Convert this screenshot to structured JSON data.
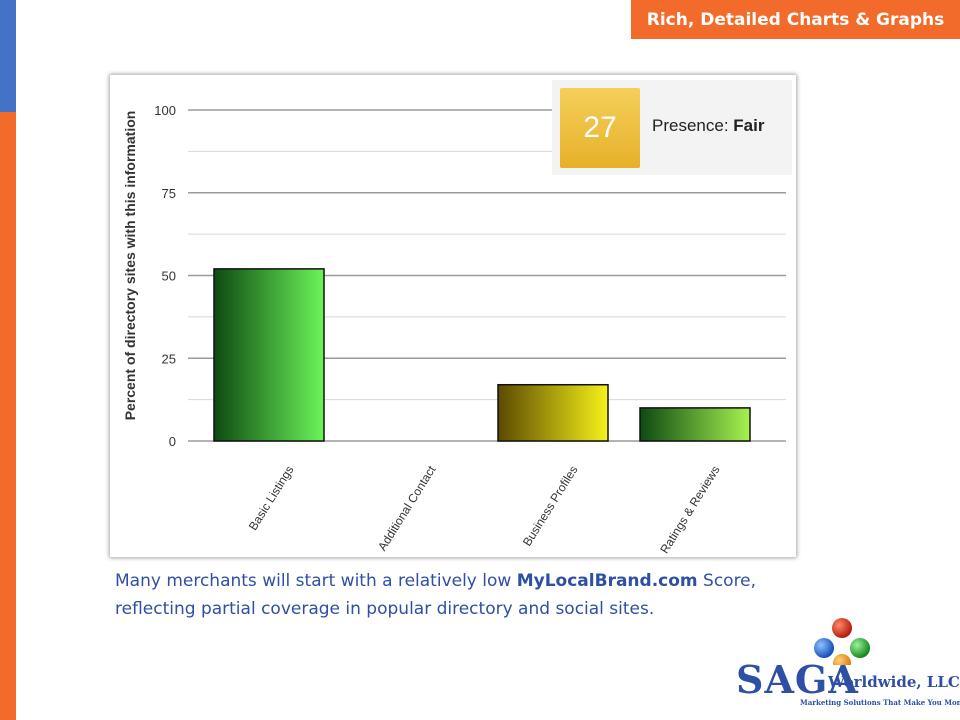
{
  "header": {
    "title": "Rich, Detailed Charts & Graphs"
  },
  "score_widget": {
    "score": "27",
    "label": "Presence:",
    "rating": "Fair"
  },
  "caption": {
    "text_before": "Many merchants will start with a relatively low ",
    "brand": "MyLocalBrand.com",
    "text_after": " Score, reflecting partial coverage in popular directory and social sites."
  },
  "logo": {
    "name": "SAGA",
    "suffix": "Worldwide, LLC",
    "tagline": "Marketing Solutions That Make You Money"
  },
  "colors": {
    "accent": "#f36b2a",
    "secondary": "#4472c4",
    "text": "#2e4fa3"
  },
  "chart_data": {
    "type": "bar",
    "categories": [
      "Basic Listings",
      "Additional Contact",
      "Business Profiles",
      "Ratings & Reviews"
    ],
    "values": [
      52,
      0,
      17,
      10
    ],
    "bar_colors": [
      [
        "#0e4a12",
        "#6cf45a"
      ],
      [
        "#0e4a12",
        "#6cf45a"
      ],
      [
        "#5c4a00",
        "#f6f21a"
      ],
      [
        "#0e4a12",
        "#a6f250"
      ]
    ],
    "ylabel": "Percent of directory sites with this information",
    "xlabel": "",
    "ylim": [
      0,
      100
    ],
    "yticks": [
      0,
      25,
      50,
      75,
      100
    ],
    "grid": true
  }
}
